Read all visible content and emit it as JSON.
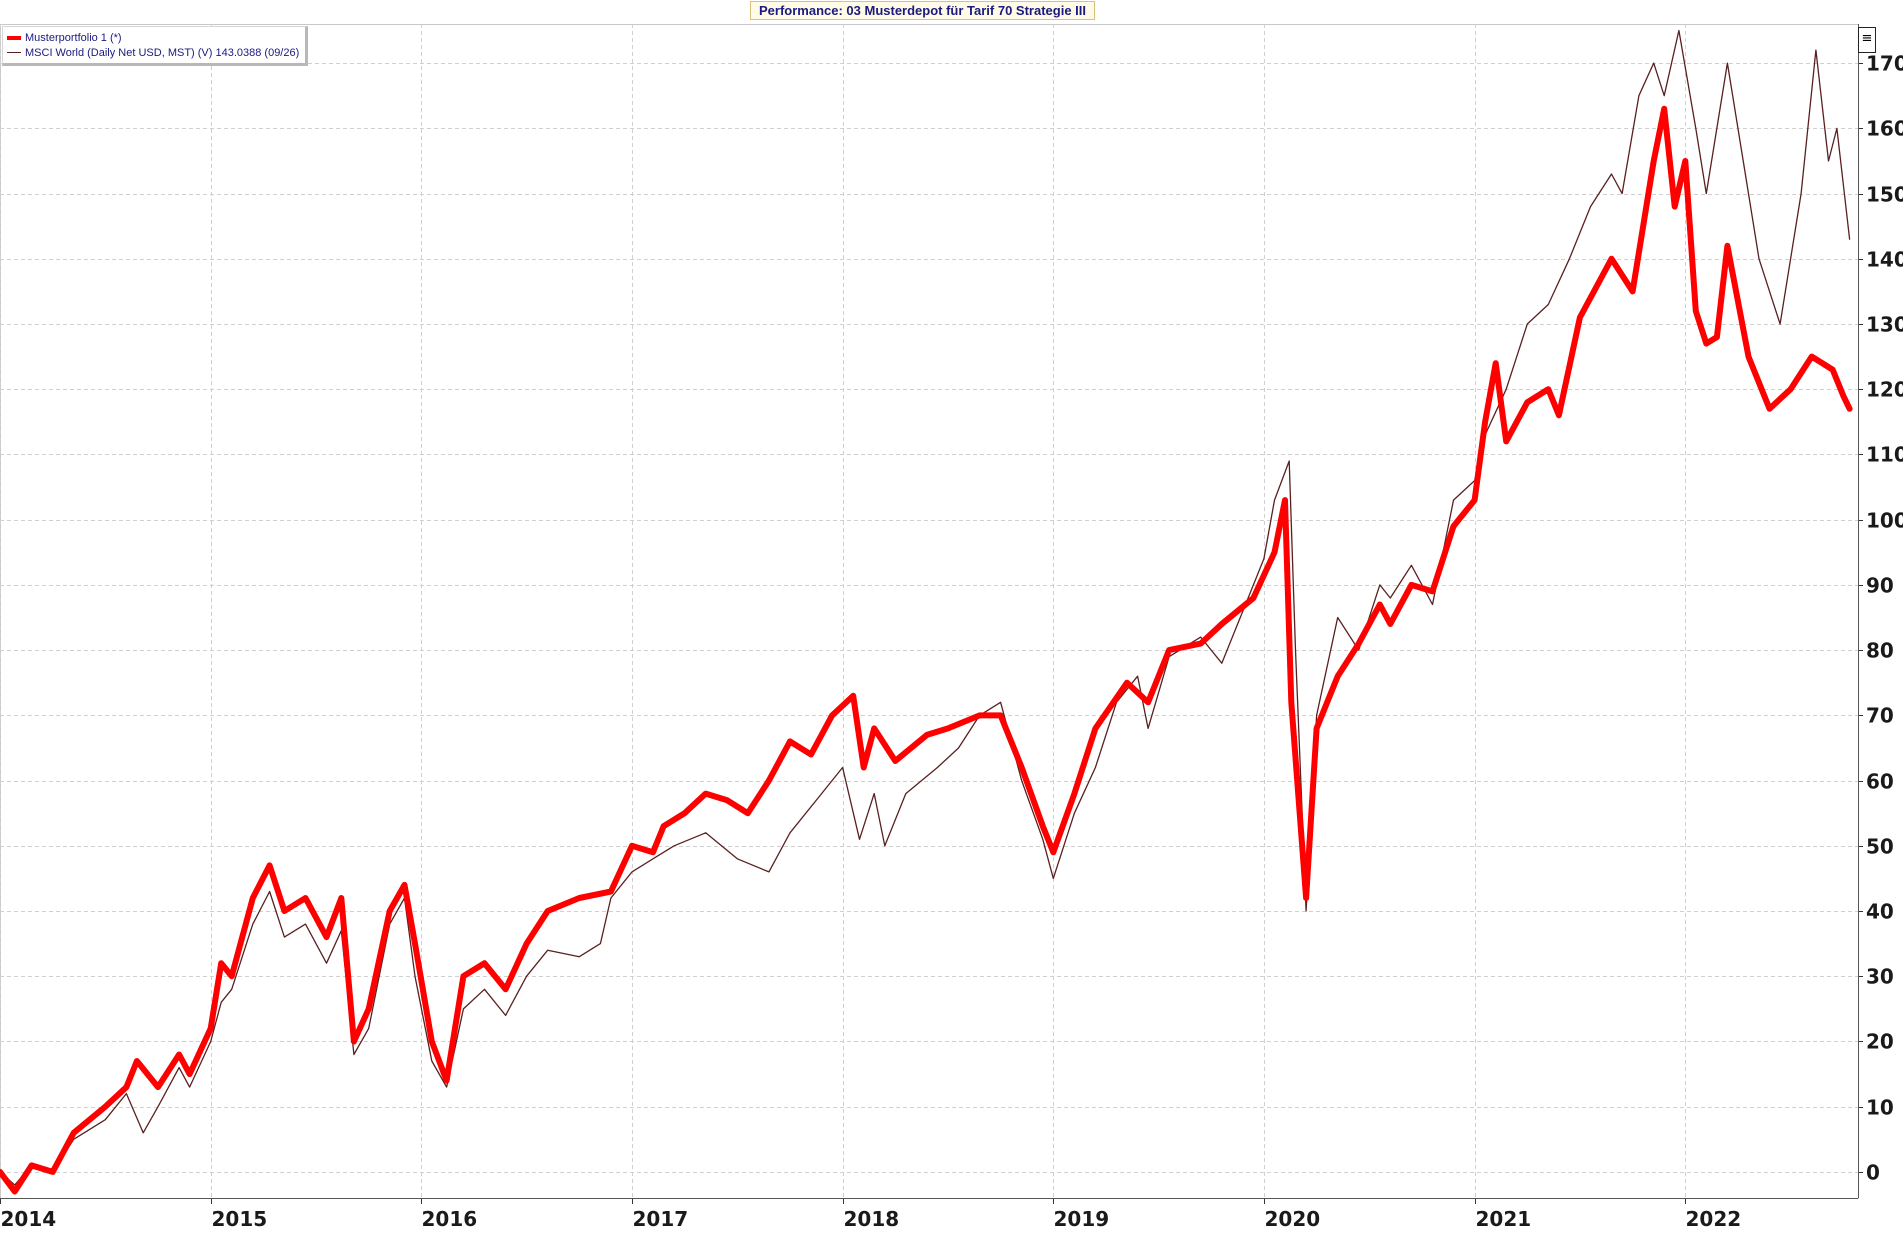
{
  "title": "Performance: 03 Musterdepot für Tarif 70 Strategie III",
  "menu_icon": "hamburger-menu-icon",
  "legend": [
    {
      "label": "Musterportfolio 1 (*)",
      "color": "#ff0000"
    },
    {
      "label": "MSCI World (Daily Net USD, MST) (V) 143.0388 (09/26)",
      "color": "#5a2020"
    }
  ],
  "chart_data": {
    "type": "line",
    "title": "Performance: 03 Musterdepot für Tarif 70 Strategie III",
    "xlabel": "",
    "ylabel": "",
    "x_range": [
      2014.0,
      2022.82
    ],
    "ylim": [
      -4,
      176
    ],
    "y_ticks": [
      0,
      10,
      20,
      30,
      40,
      50,
      60,
      70,
      80,
      90,
      100,
      110,
      120,
      130,
      140,
      150,
      160,
      170
    ],
    "x_ticks": [
      2014,
      2015,
      2016,
      2017,
      2018,
      2019,
      2020,
      2021,
      2022
    ],
    "x_tick_labels": [
      "2014",
      "2015",
      "2016",
      "2017",
      "2018",
      "2019",
      "2020",
      "2021",
      "2022"
    ],
    "grid": true,
    "legend_position": "top-left",
    "series": [
      {
        "name": "Musterportfolio 1 (*)",
        "color": "#ff0000",
        "points": [
          [
            2014.0,
            0
          ],
          [
            2014.07,
            -3
          ],
          [
            2014.15,
            1
          ],
          [
            2014.25,
            0
          ],
          [
            2014.35,
            6
          ],
          [
            2014.5,
            10
          ],
          [
            2014.6,
            13
          ],
          [
            2014.65,
            17
          ],
          [
            2014.75,
            13
          ],
          [
            2014.85,
            18
          ],
          [
            2014.9,
            15
          ],
          [
            2015.0,
            22
          ],
          [
            2015.05,
            32
          ],
          [
            2015.1,
            30
          ],
          [
            2015.2,
            42
          ],
          [
            2015.28,
            47
          ],
          [
            2015.35,
            40
          ],
          [
            2015.45,
            42
          ],
          [
            2015.55,
            36
          ],
          [
            2015.62,
            42
          ],
          [
            2015.68,
            20
          ],
          [
            2015.75,
            25
          ],
          [
            2015.85,
            40
          ],
          [
            2015.92,
            44
          ],
          [
            2015.97,
            35
          ],
          [
            2016.05,
            20
          ],
          [
            2016.12,
            14
          ],
          [
            2016.2,
            30
          ],
          [
            2016.3,
            32
          ],
          [
            2016.4,
            28
          ],
          [
            2016.5,
            35
          ],
          [
            2016.6,
            40
          ],
          [
            2016.75,
            42
          ],
          [
            2016.9,
            43
          ],
          [
            2017.0,
            50
          ],
          [
            2017.1,
            49
          ],
          [
            2017.15,
            53
          ],
          [
            2017.25,
            55
          ],
          [
            2017.35,
            58
          ],
          [
            2017.45,
            57
          ],
          [
            2017.55,
            55
          ],
          [
            2017.65,
            60
          ],
          [
            2017.75,
            66
          ],
          [
            2017.85,
            64
          ],
          [
            2017.95,
            70
          ],
          [
            2018.05,
            73
          ],
          [
            2018.1,
            62
          ],
          [
            2018.15,
            68
          ],
          [
            2018.25,
            63
          ],
          [
            2018.4,
            67
          ],
          [
            2018.5,
            68
          ],
          [
            2018.65,
            70
          ],
          [
            2018.75,
            70
          ],
          [
            2018.85,
            62
          ],
          [
            2018.95,
            53
          ],
          [
            2019.0,
            49
          ],
          [
            2019.1,
            58
          ],
          [
            2019.2,
            68
          ],
          [
            2019.35,
            75
          ],
          [
            2019.45,
            72
          ],
          [
            2019.55,
            80
          ],
          [
            2019.7,
            81
          ],
          [
            2019.8,
            84
          ],
          [
            2019.95,
            88
          ],
          [
            2020.05,
            95
          ],
          [
            2020.1,
            103
          ],
          [
            2020.13,
            72
          ],
          [
            2020.2,
            42
          ],
          [
            2020.25,
            68
          ],
          [
            2020.35,
            76
          ],
          [
            2020.45,
            81
          ],
          [
            2020.55,
            87
          ],
          [
            2020.6,
            84
          ],
          [
            2020.7,
            90
          ],
          [
            2020.8,
            89
          ],
          [
            2020.9,
            99
          ],
          [
            2021.0,
            103
          ],
          [
            2021.05,
            115
          ],
          [
            2021.1,
            124
          ],
          [
            2021.15,
            112
          ],
          [
            2021.25,
            118
          ],
          [
            2021.35,
            120
          ],
          [
            2021.4,
            116
          ],
          [
            2021.5,
            131
          ],
          [
            2021.65,
            140
          ],
          [
            2021.75,
            135
          ],
          [
            2021.85,
            155
          ],
          [
            2021.9,
            163
          ],
          [
            2021.95,
            148
          ],
          [
            2022.0,
            155
          ],
          [
            2022.05,
            132
          ],
          [
            2022.1,
            127
          ],
          [
            2022.15,
            128
          ],
          [
            2022.2,
            142
          ],
          [
            2022.3,
            125
          ],
          [
            2022.4,
            117
          ],
          [
            2022.5,
            120
          ],
          [
            2022.6,
            125
          ],
          [
            2022.7,
            123
          ],
          [
            2022.75,
            119
          ],
          [
            2022.78,
            117
          ]
        ]
      },
      {
        "name": "MSCI World (Daily Net USD, MST) (V) 143.0388 (09/26)",
        "color": "#5a2020",
        "points": [
          [
            2014.0,
            0
          ],
          [
            2014.07,
            -2
          ],
          [
            2014.15,
            1
          ],
          [
            2014.25,
            0
          ],
          [
            2014.35,
            5
          ],
          [
            2014.5,
            8
          ],
          [
            2014.6,
            12
          ],
          [
            2014.68,
            6
          ],
          [
            2014.75,
            10
          ],
          [
            2014.85,
            16
          ],
          [
            2014.9,
            13
          ],
          [
            2015.0,
            20
          ],
          [
            2015.05,
            26
          ],
          [
            2015.1,
            28
          ],
          [
            2015.2,
            38
          ],
          [
            2015.28,
            43
          ],
          [
            2015.35,
            36
          ],
          [
            2015.45,
            38
          ],
          [
            2015.55,
            32
          ],
          [
            2015.62,
            37
          ],
          [
            2015.68,
            18
          ],
          [
            2015.75,
            22
          ],
          [
            2015.85,
            38
          ],
          [
            2015.92,
            42
          ],
          [
            2015.97,
            30
          ],
          [
            2016.05,
            17
          ],
          [
            2016.12,
            13
          ],
          [
            2016.2,
            25
          ],
          [
            2016.3,
            28
          ],
          [
            2016.4,
            24
          ],
          [
            2016.5,
            30
          ],
          [
            2016.6,
            34
          ],
          [
            2016.75,
            33
          ],
          [
            2016.85,
            35
          ],
          [
            2016.9,
            42
          ],
          [
            2017.0,
            46
          ],
          [
            2017.1,
            48
          ],
          [
            2017.2,
            50
          ],
          [
            2017.35,
            52
          ],
          [
            2017.5,
            48
          ],
          [
            2017.65,
            46
          ],
          [
            2017.75,
            52
          ],
          [
            2017.9,
            58
          ],
          [
            2018.0,
            62
          ],
          [
            2018.08,
            51
          ],
          [
            2018.15,
            58
          ],
          [
            2018.2,
            50
          ],
          [
            2018.3,
            58
          ],
          [
            2018.45,
            62
          ],
          [
            2018.55,
            65
          ],
          [
            2018.65,
            70
          ],
          [
            2018.75,
            72
          ],
          [
            2018.85,
            60
          ],
          [
            2018.95,
            51
          ],
          [
            2019.0,
            45
          ],
          [
            2019.1,
            55
          ],
          [
            2019.2,
            62
          ],
          [
            2019.3,
            72
          ],
          [
            2019.4,
            76
          ],
          [
            2019.45,
            68
          ],
          [
            2019.55,
            79
          ],
          [
            2019.7,
            82
          ],
          [
            2019.8,
            78
          ],
          [
            2019.9,
            86
          ],
          [
            2020.0,
            94
          ],
          [
            2020.05,
            103
          ],
          [
            2020.12,
            109
          ],
          [
            2020.15,
            80
          ],
          [
            2020.2,
            40
          ],
          [
            2020.25,
            70
          ],
          [
            2020.35,
            85
          ],
          [
            2020.45,
            80
          ],
          [
            2020.55,
            90
          ],
          [
            2020.6,
            88
          ],
          [
            2020.7,
            93
          ],
          [
            2020.8,
            87
          ],
          [
            2020.9,
            103
          ],
          [
            2021.0,
            106
          ],
          [
            2021.05,
            113
          ],
          [
            2021.15,
            120
          ],
          [
            2021.25,
            130
          ],
          [
            2021.35,
            133
          ],
          [
            2021.45,
            140
          ],
          [
            2021.55,
            148
          ],
          [
            2021.65,
            153
          ],
          [
            2021.7,
            150
          ],
          [
            2021.78,
            165
          ],
          [
            2021.85,
            170
          ],
          [
            2021.9,
            165
          ],
          [
            2021.97,
            175
          ],
          [
            2022.05,
            160
          ],
          [
            2022.1,
            150
          ],
          [
            2022.2,
            170
          ],
          [
            2022.3,
            150
          ],
          [
            2022.35,
            140
          ],
          [
            2022.45,
            130
          ],
          [
            2022.55,
            150
          ],
          [
            2022.62,
            172
          ],
          [
            2022.68,
            155
          ],
          [
            2022.72,
            160
          ],
          [
            2022.78,
            143
          ]
        ]
      }
    ]
  }
}
